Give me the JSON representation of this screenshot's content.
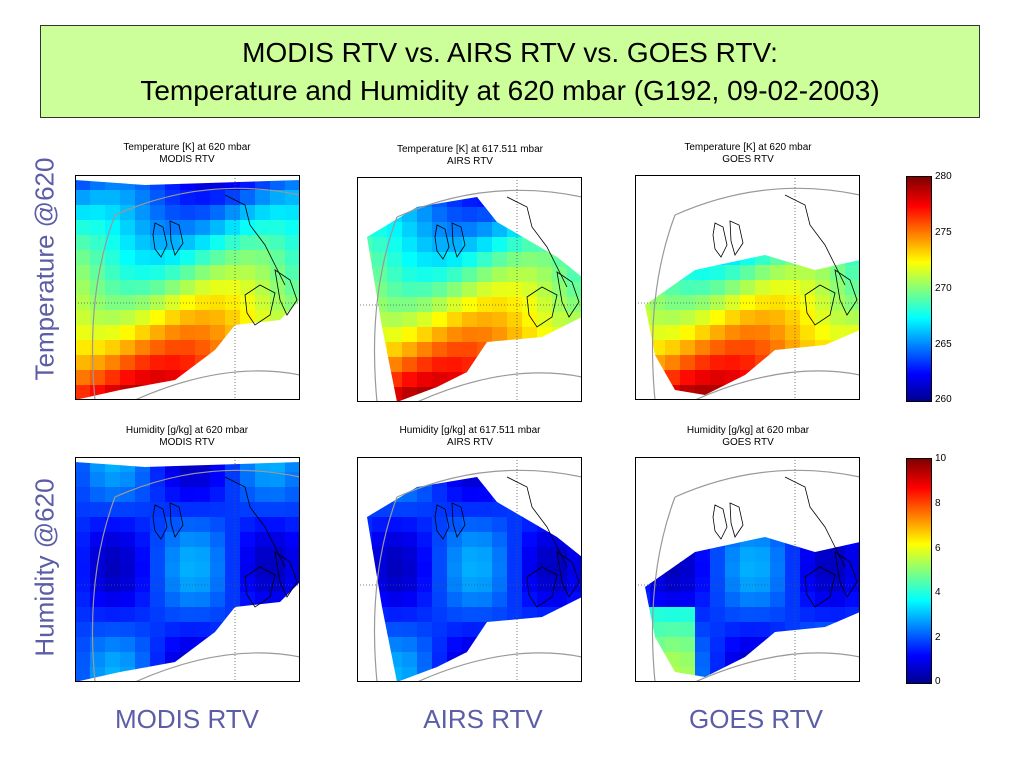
{
  "title": {
    "line1": "MODIS RTV vs. AIRS RTV vs. GOES RTV:",
    "line2": "Temperature and Humidity at 620 mbar (G192, 09-02-2003)"
  },
  "row_labels": [
    "Temperature @620",
    "Humidity @620"
  ],
  "column_labels": [
    "MODIS RTV",
    "AIRS RTV",
    "GOES RTV"
  ],
  "panels": [
    {
      "title1": "Temperature [K] at 620 mbar",
      "title2": "MODIS RTV"
    },
    {
      "title1": "Temperature [K] at 617.511 mbar",
      "title2": "AIRS RTV"
    },
    {
      "title1": "Temperature [K] at 620 mbar",
      "title2": "GOES RTV"
    },
    {
      "title1": "Humidity [g/kg] at 620 mbar",
      "title2": "MODIS RTV"
    },
    {
      "title1": "Humidity [g/kg] at 617.511 mbar",
      "title2": "AIRS RTV"
    },
    {
      "title1": "Humidity [g/kg] at 620 mbar",
      "title2": "GOES RTV"
    }
  ],
  "chart_data": [
    {
      "type": "heatmap",
      "variable": "temperature",
      "pressure_mbar": [
        620,
        617.511,
        620
      ],
      "colorbar_range": [
        260,
        280
      ],
      "colorbar_ticks": [
        "280",
        "275",
        "270",
        "265",
        "260"
      ],
      "colormap": "jet"
    },
    {
      "type": "heatmap",
      "variable": "humidity",
      "pressure_mbar": [
        620,
        617.511,
        620
      ],
      "colorbar_range": [
        0,
        10
      ],
      "colorbar_ticks": [
        "10",
        "8",
        "6",
        "4",
        "2",
        "0"
      ],
      "colormap": "jet"
    }
  ]
}
